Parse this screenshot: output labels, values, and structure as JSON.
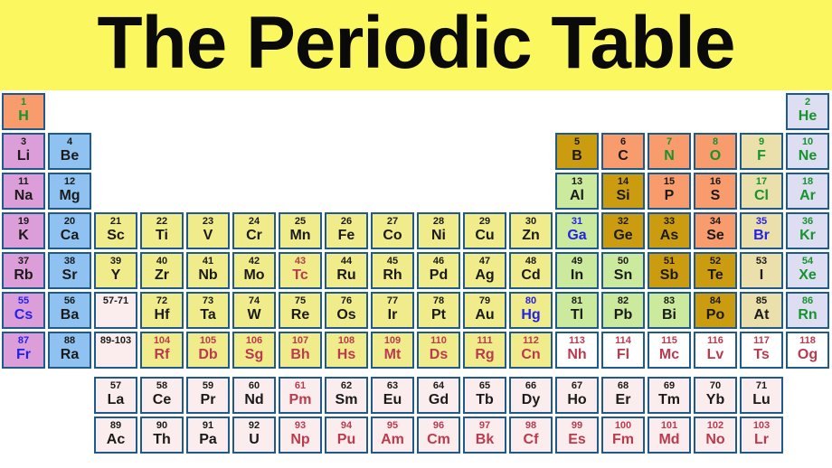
{
  "title": "The Periodic Table",
  "colors": {
    "header_bg": "#FBF75F",
    "page_bg": "#FFFFFF",
    "cell_border": "#1E5A8C",
    "categories": {
      "alkali": "#DC9ED9",
      "alkaline": "#8FC2F0",
      "transition": "#F1EC8B",
      "post": "#CBEA9D",
      "metalloid": "#CB9B10",
      "nonmetal": "#F89B6D",
      "halogen": "#EBE0AC",
      "noble": "#DEDEF2",
      "lanact": "#FBEDED",
      "unknown": "#FFFFFF"
    },
    "states": {
      "solid": "#1A1A1A",
      "gas": "#15932D",
      "liquid": "#2121EE",
      "synthetic": "#BB3A4E"
    }
  },
  "placeholders": [
    {
      "label": "57-71",
      "col": 3,
      "row": 6,
      "cat": "lanact",
      "st": "solid"
    },
    {
      "label": "89-103",
      "col": 3,
      "row": 7,
      "cat": "lanact",
      "st": "solid"
    }
  ],
  "elements": [
    {
      "n": 1,
      "s": "H",
      "col": 1,
      "row": 1,
      "cat": "nonmetal",
      "st": "gas"
    },
    {
      "n": 2,
      "s": "He",
      "col": 18,
      "row": 1,
      "cat": "noble",
      "st": "gas"
    },
    {
      "n": 3,
      "s": "Li",
      "col": 1,
      "row": 2,
      "cat": "alkali",
      "st": "solid"
    },
    {
      "n": 4,
      "s": "Be",
      "col": 2,
      "row": 2,
      "cat": "alkaline",
      "st": "solid"
    },
    {
      "n": 5,
      "s": "B",
      "col": 13,
      "row": 2,
      "cat": "metalloid",
      "st": "solid"
    },
    {
      "n": 6,
      "s": "C",
      "col": 14,
      "row": 2,
      "cat": "nonmetal",
      "st": "solid"
    },
    {
      "n": 7,
      "s": "N",
      "col": 15,
      "row": 2,
      "cat": "nonmetal",
      "st": "gas"
    },
    {
      "n": 8,
      "s": "O",
      "col": 16,
      "row": 2,
      "cat": "nonmetal",
      "st": "gas"
    },
    {
      "n": 9,
      "s": "F",
      "col": 17,
      "row": 2,
      "cat": "halogen",
      "st": "gas"
    },
    {
      "n": 10,
      "s": "Ne",
      "col": 18,
      "row": 2,
      "cat": "noble",
      "st": "gas"
    },
    {
      "n": 11,
      "s": "Na",
      "col": 1,
      "row": 3,
      "cat": "alkali",
      "st": "solid"
    },
    {
      "n": 12,
      "s": "Mg",
      "col": 2,
      "row": 3,
      "cat": "alkaline",
      "st": "solid"
    },
    {
      "n": 13,
      "s": "Al",
      "col": 13,
      "row": 3,
      "cat": "post",
      "st": "solid"
    },
    {
      "n": 14,
      "s": "Si",
      "col": 14,
      "row": 3,
      "cat": "metalloid",
      "st": "solid"
    },
    {
      "n": 15,
      "s": "P",
      "col": 15,
      "row": 3,
      "cat": "nonmetal",
      "st": "solid"
    },
    {
      "n": 16,
      "s": "S",
      "col": 16,
      "row": 3,
      "cat": "nonmetal",
      "st": "solid"
    },
    {
      "n": 17,
      "s": "Cl",
      "col": 17,
      "row": 3,
      "cat": "halogen",
      "st": "gas"
    },
    {
      "n": 18,
      "s": "Ar",
      "col": 18,
      "row": 3,
      "cat": "noble",
      "st": "gas"
    },
    {
      "n": 19,
      "s": "K",
      "col": 1,
      "row": 4,
      "cat": "alkali",
      "st": "solid"
    },
    {
      "n": 20,
      "s": "Ca",
      "col": 2,
      "row": 4,
      "cat": "alkaline",
      "st": "solid"
    },
    {
      "n": 21,
      "s": "Sc",
      "col": 3,
      "row": 4,
      "cat": "transition",
      "st": "solid"
    },
    {
      "n": 22,
      "s": "Ti",
      "col": 4,
      "row": 4,
      "cat": "transition",
      "st": "solid"
    },
    {
      "n": 23,
      "s": "V",
      "col": 5,
      "row": 4,
      "cat": "transition",
      "st": "solid"
    },
    {
      "n": 24,
      "s": "Cr",
      "col": 6,
      "row": 4,
      "cat": "transition",
      "st": "solid"
    },
    {
      "n": 25,
      "s": "Mn",
      "col": 7,
      "row": 4,
      "cat": "transition",
      "st": "solid"
    },
    {
      "n": 26,
      "s": "Fe",
      "col": 8,
      "row": 4,
      "cat": "transition",
      "st": "solid"
    },
    {
      "n": 27,
      "s": "Co",
      "col": 9,
      "row": 4,
      "cat": "transition",
      "st": "solid"
    },
    {
      "n": 28,
      "s": "Ni",
      "col": 10,
      "row": 4,
      "cat": "transition",
      "st": "solid"
    },
    {
      "n": 29,
      "s": "Cu",
      "col": 11,
      "row": 4,
      "cat": "transition",
      "st": "solid"
    },
    {
      "n": 30,
      "s": "Zn",
      "col": 12,
      "row": 4,
      "cat": "transition",
      "st": "solid"
    },
    {
      "n": 31,
      "s": "Ga",
      "col": 13,
      "row": 4,
      "cat": "post",
      "st": "liquid"
    },
    {
      "n": 32,
      "s": "Ge",
      "col": 14,
      "row": 4,
      "cat": "metalloid",
      "st": "solid"
    },
    {
      "n": 33,
      "s": "As",
      "col": 15,
      "row": 4,
      "cat": "metalloid",
      "st": "solid"
    },
    {
      "n": 34,
      "s": "Se",
      "col": 16,
      "row": 4,
      "cat": "nonmetal",
      "st": "solid"
    },
    {
      "n": 35,
      "s": "Br",
      "col": 17,
      "row": 4,
      "cat": "halogen",
      "st": "liquid"
    },
    {
      "n": 36,
      "s": "Kr",
      "col": 18,
      "row": 4,
      "cat": "noble",
      "st": "gas"
    },
    {
      "n": 37,
      "s": "Rb",
      "col": 1,
      "row": 5,
      "cat": "alkali",
      "st": "solid"
    },
    {
      "n": 38,
      "s": "Sr",
      "col": 2,
      "row": 5,
      "cat": "alkaline",
      "st": "solid"
    },
    {
      "n": 39,
      "s": "Y",
      "col": 3,
      "row": 5,
      "cat": "transition",
      "st": "solid"
    },
    {
      "n": 40,
      "s": "Zr",
      "col": 4,
      "row": 5,
      "cat": "transition",
      "st": "solid"
    },
    {
      "n": 41,
      "s": "Nb",
      "col": 5,
      "row": 5,
      "cat": "transition",
      "st": "solid"
    },
    {
      "n": 42,
      "s": "Mo",
      "col": 6,
      "row": 5,
      "cat": "transition",
      "st": "solid"
    },
    {
      "n": 43,
      "s": "Tc",
      "col": 7,
      "row": 5,
      "cat": "transition",
      "st": "synthetic"
    },
    {
      "n": 44,
      "s": "Ru",
      "col": 8,
      "row": 5,
      "cat": "transition",
      "st": "solid"
    },
    {
      "n": 45,
      "s": "Rh",
      "col": 9,
      "row": 5,
      "cat": "transition",
      "st": "solid"
    },
    {
      "n": 46,
      "s": "Pd",
      "col": 10,
      "row": 5,
      "cat": "transition",
      "st": "solid"
    },
    {
      "n": 47,
      "s": "Ag",
      "col": 11,
      "row": 5,
      "cat": "transition",
      "st": "solid"
    },
    {
      "n": 48,
      "s": "Cd",
      "col": 12,
      "row": 5,
      "cat": "transition",
      "st": "solid"
    },
    {
      "n": 49,
      "s": "In",
      "col": 13,
      "row": 5,
      "cat": "post",
      "st": "solid"
    },
    {
      "n": 50,
      "s": "Sn",
      "col": 14,
      "row": 5,
      "cat": "post",
      "st": "solid"
    },
    {
      "n": 51,
      "s": "Sb",
      "col": 15,
      "row": 5,
      "cat": "metalloid",
      "st": "solid"
    },
    {
      "n": 52,
      "s": "Te",
      "col": 16,
      "row": 5,
      "cat": "metalloid",
      "st": "solid"
    },
    {
      "n": 53,
      "s": "I",
      "col": 17,
      "row": 5,
      "cat": "halogen",
      "st": "solid"
    },
    {
      "n": 54,
      "s": "Xe",
      "col": 18,
      "row": 5,
      "cat": "noble",
      "st": "gas"
    },
    {
      "n": 55,
      "s": "Cs",
      "col": 1,
      "row": 6,
      "cat": "alkali",
      "st": "liquid"
    },
    {
      "n": 56,
      "s": "Ba",
      "col": 2,
      "row": 6,
      "cat": "alkaline",
      "st": "solid"
    },
    {
      "n": 72,
      "s": "Hf",
      "col": 4,
      "row": 6,
      "cat": "transition",
      "st": "solid"
    },
    {
      "n": 73,
      "s": "Ta",
      "col": 5,
      "row": 6,
      "cat": "transition",
      "st": "solid"
    },
    {
      "n": 74,
      "s": "W",
      "col": 6,
      "row": 6,
      "cat": "transition",
      "st": "solid"
    },
    {
      "n": 75,
      "s": "Re",
      "col": 7,
      "row": 6,
      "cat": "transition",
      "st": "solid"
    },
    {
      "n": 76,
      "s": "Os",
      "col": 8,
      "row": 6,
      "cat": "transition",
      "st": "solid"
    },
    {
      "n": 77,
      "s": "Ir",
      "col": 9,
      "row": 6,
      "cat": "transition",
      "st": "solid"
    },
    {
      "n": 78,
      "s": "Pt",
      "col": 10,
      "row": 6,
      "cat": "transition",
      "st": "solid"
    },
    {
      "n": 79,
      "s": "Au",
      "col": 11,
      "row": 6,
      "cat": "transition",
      "st": "solid"
    },
    {
      "n": 80,
      "s": "Hg",
      "col": 12,
      "row": 6,
      "cat": "transition",
      "st": "liquid"
    },
    {
      "n": 81,
      "s": "Tl",
      "col": 13,
      "row": 6,
      "cat": "post",
      "st": "solid"
    },
    {
      "n": 82,
      "s": "Pb",
      "col": 14,
      "row": 6,
      "cat": "post",
      "st": "solid"
    },
    {
      "n": 83,
      "s": "Bi",
      "col": 15,
      "row": 6,
      "cat": "post",
      "st": "solid"
    },
    {
      "n": 84,
      "s": "Po",
      "col": 16,
      "row": 6,
      "cat": "metalloid",
      "st": "solid"
    },
    {
      "n": 85,
      "s": "At",
      "col": 17,
      "row": 6,
      "cat": "halogen",
      "st": "solid"
    },
    {
      "n": 86,
      "s": "Rn",
      "col": 18,
      "row": 6,
      "cat": "noble",
      "st": "gas"
    },
    {
      "n": 87,
      "s": "Fr",
      "col": 1,
      "row": 7,
      "cat": "alkali",
      "st": "liquid"
    },
    {
      "n": 88,
      "s": "Ra",
      "col": 2,
      "row": 7,
      "cat": "alkaline",
      "st": "solid"
    },
    {
      "n": 104,
      "s": "Rf",
      "col": 4,
      "row": 7,
      "cat": "transition",
      "st": "synthetic"
    },
    {
      "n": 105,
      "s": "Db",
      "col": 5,
      "row": 7,
      "cat": "transition",
      "st": "synthetic"
    },
    {
      "n": 106,
      "s": "Sg",
      "col": 6,
      "row": 7,
      "cat": "transition",
      "st": "synthetic"
    },
    {
      "n": 107,
      "s": "Bh",
      "col": 7,
      "row": 7,
      "cat": "transition",
      "st": "synthetic"
    },
    {
      "n": 108,
      "s": "Hs",
      "col": 8,
      "row": 7,
      "cat": "transition",
      "st": "synthetic"
    },
    {
      "n": 109,
      "s": "Mt",
      "col": 9,
      "row": 7,
      "cat": "transition",
      "st": "synthetic"
    },
    {
      "n": 110,
      "s": "Ds",
      "col": 10,
      "row": 7,
      "cat": "transition",
      "st": "synthetic"
    },
    {
      "n": 111,
      "s": "Rg",
      "col": 11,
      "row": 7,
      "cat": "transition",
      "st": "synthetic"
    },
    {
      "n": 112,
      "s": "Cn",
      "col": 12,
      "row": 7,
      "cat": "transition",
      "st": "synthetic"
    },
    {
      "n": 113,
      "s": "Nh",
      "col": 13,
      "row": 7,
      "cat": "unknown",
      "st": "synthetic"
    },
    {
      "n": 114,
      "s": "Fl",
      "col": 14,
      "row": 7,
      "cat": "unknown",
      "st": "synthetic"
    },
    {
      "n": 115,
      "s": "Mc",
      "col": 15,
      "row": 7,
      "cat": "unknown",
      "st": "synthetic"
    },
    {
      "n": 116,
      "s": "Lv",
      "col": 16,
      "row": 7,
      "cat": "unknown",
      "st": "synthetic"
    },
    {
      "n": 117,
      "s": "Ts",
      "col": 17,
      "row": 7,
      "cat": "unknown",
      "st": "synthetic"
    },
    {
      "n": 118,
      "s": "Og",
      "col": 18,
      "row": 7,
      "cat": "unknown",
      "st": "synthetic"
    },
    {
      "n": 57,
      "s": "La",
      "col": 3,
      "row": 8,
      "cat": "lanact",
      "st": "solid"
    },
    {
      "n": 58,
      "s": "Ce",
      "col": 4,
      "row": 8,
      "cat": "lanact",
      "st": "solid"
    },
    {
      "n": 59,
      "s": "Pr",
      "col": 5,
      "row": 8,
      "cat": "lanact",
      "st": "solid"
    },
    {
      "n": 60,
      "s": "Nd",
      "col": 6,
      "row": 8,
      "cat": "lanact",
      "st": "solid"
    },
    {
      "n": 61,
      "s": "Pm",
      "col": 7,
      "row": 8,
      "cat": "lanact",
      "st": "synthetic"
    },
    {
      "n": 62,
      "s": "Sm",
      "col": 8,
      "row": 8,
      "cat": "lanact",
      "st": "solid"
    },
    {
      "n": 63,
      "s": "Eu",
      "col": 9,
      "row": 8,
      "cat": "lanact",
      "st": "solid"
    },
    {
      "n": 64,
      "s": "Gd",
      "col": 10,
      "row": 8,
      "cat": "lanact",
      "st": "solid"
    },
    {
      "n": 65,
      "s": "Tb",
      "col": 11,
      "row": 8,
      "cat": "lanact",
      "st": "solid"
    },
    {
      "n": 66,
      "s": "Dy",
      "col": 12,
      "row": 8,
      "cat": "lanact",
      "st": "solid"
    },
    {
      "n": 67,
      "s": "Ho",
      "col": 13,
      "row": 8,
      "cat": "lanact",
      "st": "solid"
    },
    {
      "n": 68,
      "s": "Er",
      "col": 14,
      "row": 8,
      "cat": "lanact",
      "st": "solid"
    },
    {
      "n": 69,
      "s": "Tm",
      "col": 15,
      "row": 8,
      "cat": "lanact",
      "st": "solid"
    },
    {
      "n": 70,
      "s": "Yb",
      "col": 16,
      "row": 8,
      "cat": "lanact",
      "st": "solid"
    },
    {
      "n": 71,
      "s": "Lu",
      "col": 17,
      "row": 8,
      "cat": "lanact",
      "st": "solid"
    },
    {
      "n": 89,
      "s": "Ac",
      "col": 3,
      "row": 9,
      "cat": "lanact",
      "st": "solid"
    },
    {
      "n": 90,
      "s": "Th",
      "col": 4,
      "row": 9,
      "cat": "lanact",
      "st": "solid"
    },
    {
      "n": 91,
      "s": "Pa",
      "col": 5,
      "row": 9,
      "cat": "lanact",
      "st": "solid"
    },
    {
      "n": 92,
      "s": "U",
      "col": 6,
      "row": 9,
      "cat": "lanact",
      "st": "solid"
    },
    {
      "n": 93,
      "s": "Np",
      "col": 7,
      "row": 9,
      "cat": "lanact",
      "st": "synthetic"
    },
    {
      "n": 94,
      "s": "Pu",
      "col": 8,
      "row": 9,
      "cat": "lanact",
      "st": "synthetic"
    },
    {
      "n": 95,
      "s": "Am",
      "col": 9,
      "row": 9,
      "cat": "lanact",
      "st": "synthetic"
    },
    {
      "n": 96,
      "s": "Cm",
      "col": 10,
      "row": 9,
      "cat": "lanact",
      "st": "synthetic"
    },
    {
      "n": 97,
      "s": "Bk",
      "col": 11,
      "row": 9,
      "cat": "lanact",
      "st": "synthetic"
    },
    {
      "n": 98,
      "s": "Cf",
      "col": 12,
      "row": 9,
      "cat": "lanact",
      "st": "synthetic"
    },
    {
      "n": 99,
      "s": "Es",
      "col": 13,
      "row": 9,
      "cat": "lanact",
      "st": "synthetic"
    },
    {
      "n": 100,
      "s": "Fm",
      "col": 14,
      "row": 9,
      "cat": "lanact",
      "st": "synthetic"
    },
    {
      "n": 101,
      "s": "Md",
      "col": 15,
      "row": 9,
      "cat": "lanact",
      "st": "synthetic"
    },
    {
      "n": 102,
      "s": "No",
      "col": 16,
      "row": 9,
      "cat": "lanact",
      "st": "synthetic"
    },
    {
      "n": 103,
      "s": "Lr",
      "col": 17,
      "row": 9,
      "cat": "lanact",
      "st": "synthetic"
    }
  ]
}
